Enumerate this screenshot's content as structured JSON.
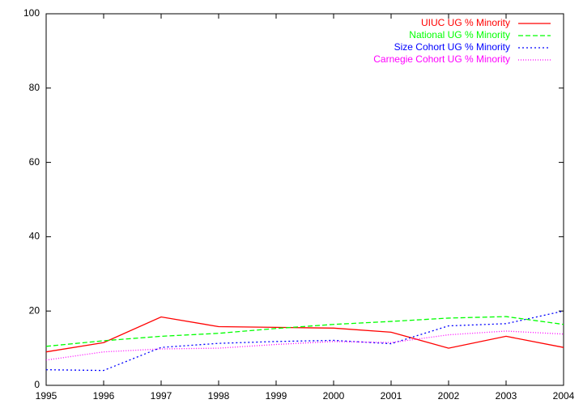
{
  "chart_data": {
    "type": "line",
    "x": [
      1995,
      1996,
      1997,
      1998,
      1999,
      2000,
      2001,
      2002,
      2003,
      2004
    ],
    "series": [
      {
        "name": "UIUC UG % Minority",
        "color": "#ff0000",
        "values": [
          9,
          11.5,
          18.4,
          15.8,
          15.6,
          15.4,
          14.3,
          10,
          13.2,
          10.2
        ]
      },
      {
        "name": "National UG % Minority",
        "color": "#00ff00",
        "values": [
          10.5,
          12,
          13.2,
          14,
          15.3,
          16.4,
          17.2,
          18.1,
          18.5,
          16.4
        ]
      },
      {
        "name": "Size Cohort UG % Minority",
        "color": "#0000ff",
        "values": [
          4.2,
          4,
          10.2,
          11.3,
          11.8,
          12.1,
          11.2,
          16,
          16.6,
          20
        ]
      },
      {
        "name": "Carnegie Cohort UG % Minority",
        "color": "#ff00ff",
        "values": [
          6.8,
          9,
          9.8,
          10,
          11,
          11.8,
          11.5,
          13.6,
          14.6,
          13.8
        ]
      }
    ],
    "xlim": [
      1995,
      2004
    ],
    "xticks": [
      1995,
      1996,
      1997,
      1998,
      1999,
      2000,
      2001,
      2002,
      2003,
      2004
    ],
    "ylim": [
      0,
      100
    ],
    "yticks": [
      0,
      20,
      40,
      60,
      80,
      100
    ],
    "legend": "top-right"
  }
}
